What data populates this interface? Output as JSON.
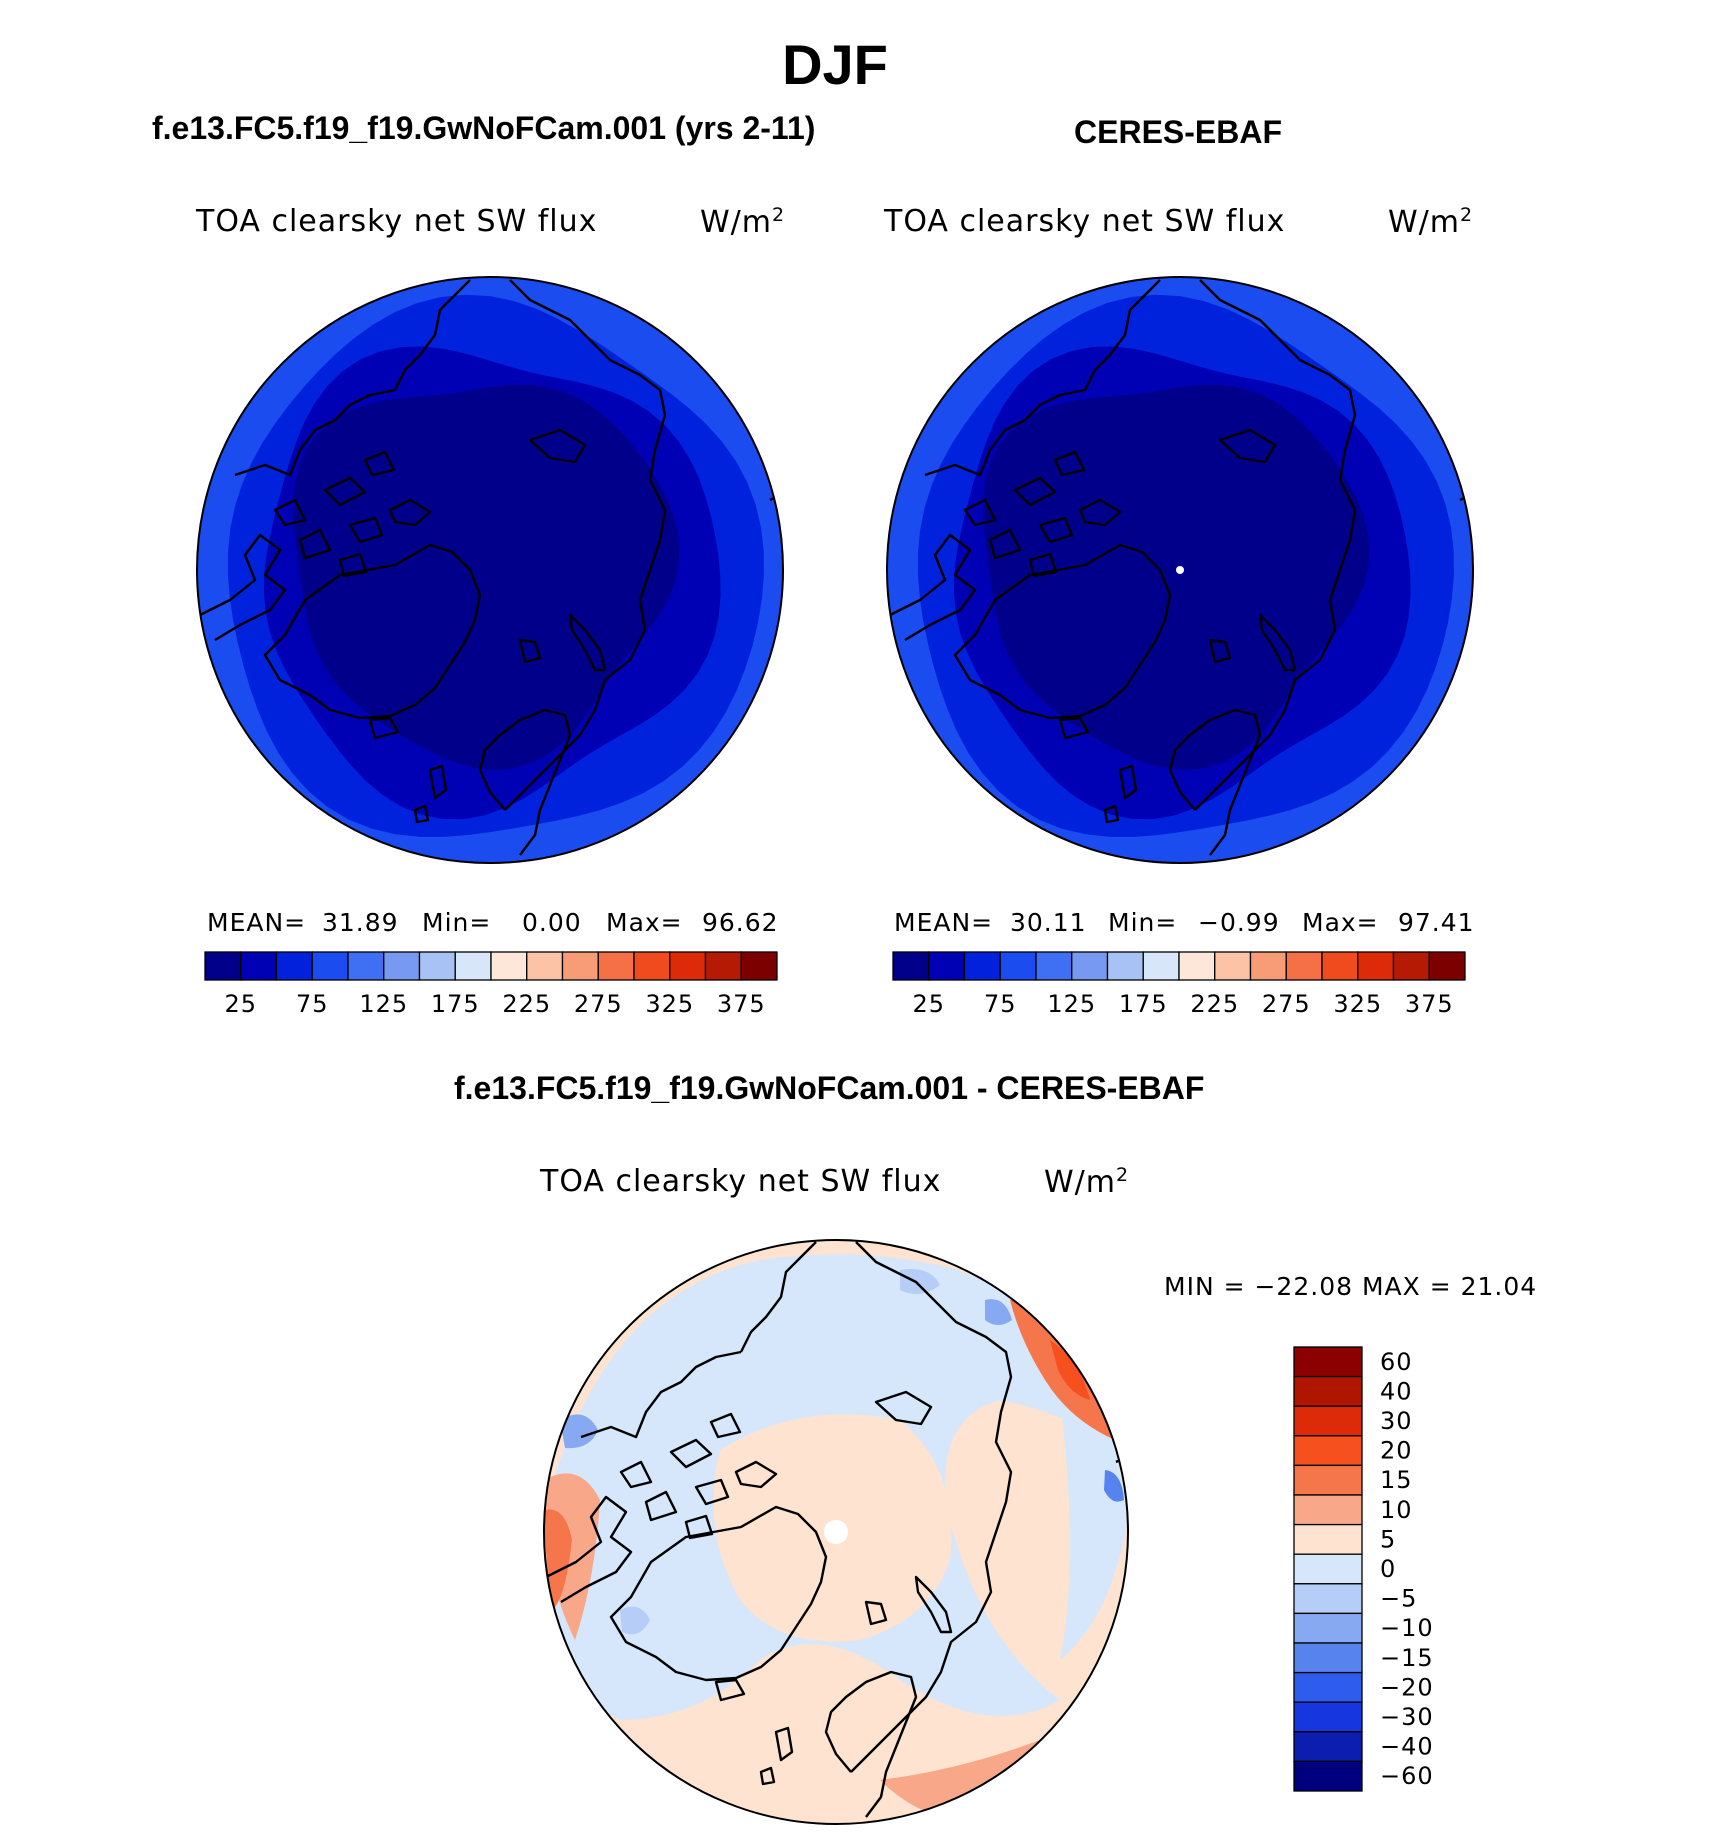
{
  "header": {
    "season": "DJF"
  },
  "panels": [
    {
      "id": "model",
      "case_title": "f.e13.FC5.f19_f19.GwNoFCam.001 (yrs 2-11)",
      "variable": "TOA clearsky net SW flux",
      "units_base": "W/m",
      "units_exp": "2",
      "stats": {
        "mean_label": "MEAN=",
        "mean": "31.89",
        "min_label": "Min=",
        "min": "0.00",
        "max_label": "Max=",
        "max": "96.62"
      }
    },
    {
      "id": "obs",
      "case_title": "CERES-EBAF",
      "variable": "TOA clearsky net SW flux",
      "units_base": "W/m",
      "units_exp": "2",
      "stats": {
        "mean_label": "MEAN=",
        "mean": "30.11",
        "min_label": "Min=",
        "min": "−0.99",
        "max_label": "Max=",
        "max": "97.41"
      }
    },
    {
      "id": "diff",
      "case_title": "f.e13.FC5.f19_f19.GwNoFCam.001 - CERES-EBAF",
      "variable": "TOA clearsky net SW flux",
      "units_base": "W/m",
      "units_exp": "2",
      "stats": {
        "text": "MIN = −22.08 MAX =  21.04"
      }
    }
  ],
  "colorbars": {
    "absolute": {
      "colors": [
        "#00008b",
        "#0000b5",
        "#0022dd",
        "#1a4cf0",
        "#3f6ff2",
        "#7799f2",
        "#a8c2f5",
        "#d8e6fa",
        "#fde7d8",
        "#fcc3a6",
        "#f89c78",
        "#f57047",
        "#f04a1f",
        "#dd2a08",
        "#b41a04",
        "#7d0000"
      ],
      "tick_labels": [
        "25",
        "75",
        "125",
        "175",
        "225",
        "275",
        "325",
        "375"
      ]
    },
    "difference": {
      "colors_top_to_bottom": [
        "#8b0000",
        "#b01500",
        "#dd2a08",
        "#f6501e",
        "#f5764a",
        "#f8a788",
        "#fde3d0",
        "#d6e7fb",
        "#b6cdf7",
        "#87a9f1",
        "#5683ee",
        "#2e5ced",
        "#1636df",
        "#0b1eb0",
        "#00007f"
      ],
      "tick_labels_top_to_bottom": [
        "60",
        "40",
        "30",
        "20",
        "15",
        "10",
        "5",
        "0",
        "−5",
        "−10",
        "−15",
        "−20",
        "−30",
        "−40",
        "−60"
      ]
    }
  },
  "chart_data": [
    {
      "type": "heatmap",
      "projection": "north polar stereographic",
      "title": "f.e13.FC5.f19_f19.GwNoFCam.001 (yrs 2-11)",
      "variable": "TOA clearsky net SW flux",
      "units": "W/m2",
      "season": "DJF",
      "levels": [
        25,
        50,
        75,
        100,
        125,
        150,
        175,
        200,
        225,
        250,
        275,
        300,
        325,
        350,
        375
      ],
      "mean": 31.89,
      "min": 0.0,
      "max": 96.62,
      "zones": [
        {
          "region": "central Arctic",
          "value_range": [
            0,
            25
          ]
        },
        {
          "region": "mid ring",
          "value_range": [
            25,
            50
          ]
        },
        {
          "region": "outer ring",
          "value_range": [
            50,
            75
          ]
        },
        {
          "region": "outer edge",
          "value_range": [
            75,
            100
          ]
        }
      ]
    },
    {
      "type": "heatmap",
      "projection": "north polar stereographic",
      "title": "CERES-EBAF",
      "variable": "TOA clearsky net SW flux",
      "units": "W/m2",
      "season": "DJF",
      "levels": [
        25,
        50,
        75,
        100,
        125,
        150,
        175,
        200,
        225,
        250,
        275,
        300,
        325,
        350,
        375
      ],
      "mean": 30.11,
      "min": -0.99,
      "max": 97.41,
      "zones": [
        {
          "region": "central Arctic",
          "value_range": [
            0,
            25
          ]
        },
        {
          "region": "mid ring",
          "value_range": [
            25,
            50
          ]
        },
        {
          "region": "outer ring",
          "value_range": [
            50,
            75
          ]
        },
        {
          "region": "outer edge",
          "value_range": [
            75,
            100
          ]
        }
      ]
    },
    {
      "type": "heatmap",
      "projection": "north polar stereographic",
      "title": "f.e13.FC5.f19_f19.GwNoFCam.001 - CERES-EBAF",
      "variable": "TOA clearsky net SW flux",
      "units": "W/m2",
      "season": "DJF",
      "levels": [
        -60,
        -40,
        -30,
        -20,
        -15,
        -10,
        -5,
        0,
        5,
        10,
        15,
        20,
        30,
        40,
        60
      ],
      "min": -22.08,
      "max": 21.04,
      "zones": [
        {
          "region": "central Arctic / Eurasia",
          "value_range": [
            0,
            5
          ]
        },
        {
          "region": "North America / North Atlantic ring",
          "value_range": [
            -5,
            0
          ]
        },
        {
          "region": "North Pacific margin",
          "value_range": [
            10,
            20
          ]
        },
        {
          "region": "western edge",
          "value_range": [
            15,
            20
          ]
        },
        {
          "region": "scattered patches",
          "value_range": [
            -20,
            -10
          ]
        }
      ]
    }
  ]
}
